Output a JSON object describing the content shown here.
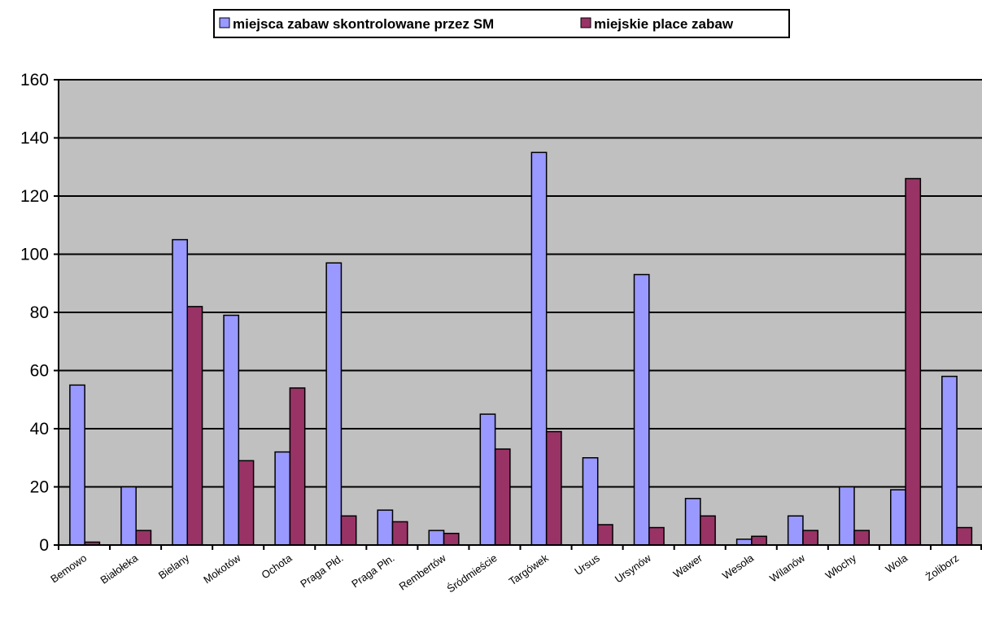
{
  "chart_data": {
    "type": "bar",
    "title": "",
    "xlabel": "",
    "ylabel": "",
    "ylim": [
      0,
      160
    ],
    "yticks": [
      0,
      20,
      40,
      60,
      80,
      100,
      120,
      140,
      160
    ],
    "grid": true,
    "legend_position": "top",
    "plot_background": "#C0C0C0",
    "categories": [
      "Bemowo",
      "Białołeka",
      "Bielany",
      "Mokotów",
      "Ochota",
      "Praga Płd.",
      "Praga Płn.",
      "Rembertów",
      "Śródmieście",
      "Targówek",
      "Ursus",
      "Ursynów",
      "Wawer",
      "Wesoła",
      "Wilanów",
      "Włochy",
      "Wola",
      "Żoliborz"
    ],
    "series": [
      {
        "name": "miejsca zabaw skontrolowane przez SM",
        "color": "#9999FF",
        "values": [
          55,
          20,
          105,
          79,
          32,
          97,
          12,
          5,
          45,
          135,
          30,
          93,
          16,
          2,
          10,
          20,
          19,
          58
        ]
      },
      {
        "name": "miejskie place zabaw",
        "color": "#993366",
        "values": [
          1,
          5,
          82,
          29,
          54,
          10,
          8,
          4,
          33,
          39,
          7,
          6,
          10,
          3,
          5,
          5,
          126,
          6
        ]
      }
    ]
  }
}
